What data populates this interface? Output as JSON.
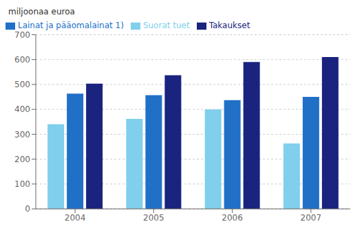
{
  "chart_data": {
    "type": "bar",
    "ylabel": "miljoonaa euroa",
    "categories": [
      "2004",
      "2005",
      "2006",
      "2007"
    ],
    "series": [
      {
        "name": "Suorat tuet",
        "color": "#80CFEC",
        "values": [
          340,
          362,
          400,
          263
        ]
      },
      {
        "name": "Lainat ja pääomalainat 1)",
        "color": "#2070C8",
        "values": [
          463,
          457,
          437,
          450
        ]
      },
      {
        "name": "Takaukset",
        "color": "#1A237E",
        "values": [
          503,
          537,
          590,
          610
        ]
      }
    ],
    "ylim": [
      0,
      700
    ],
    "yticks": [
      0,
      100,
      200,
      300,
      400,
      500,
      600,
      700
    ],
    "grid": true,
    "legend": "upper left"
  }
}
